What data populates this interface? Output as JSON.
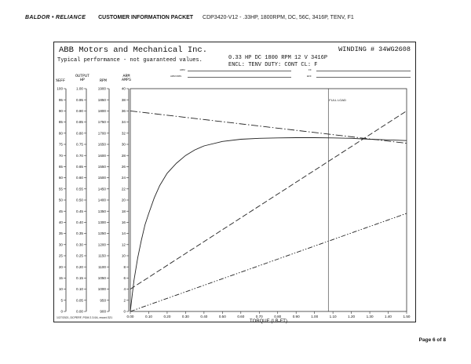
{
  "header": {
    "brand": "BALDOR • RELIANCE",
    "packet": "CUSTOMER INFORMATION PACKET",
    "description": "CDP3420-V12 - .33HP, 1800RPM, DC, 56C, 3416P, TENV, F1"
  },
  "sheet": {
    "company": "ABB Motors and Mechanical Inc.",
    "typical": "Typical performance - not guaranteed values.",
    "winding": "WINDING # 34WG2608",
    "specs_line1": "0.33 HP  DC  1800 RPM  12 V  3416P",
    "specs_line2": "ENCL: TENV  DUTY: CONT  CL: F",
    "field_labels": [
      "ARM",
      "ARM RMS",
      "FF",
      "EFF"
    ],
    "footer_note": "1/27/2021, DCPERF, PGM 2.3.0A, record 321"
  },
  "page_number": "Page 6 of 8",
  "chart_data": {
    "type": "line",
    "xlabel": "TORQUE (LB-FT)",
    "x_ticks": [
      "0.00",
      "0.10",
      "0.20",
      "0.30",
      "0.40",
      "0.50",
      "0.60",
      "0.70",
      "0.80",
      "0.90",
      "1.00",
      "1.10",
      "1.20",
      "1.30",
      "1.40",
      "1.50"
    ],
    "xlim": [
      0,
      1.5
    ],
    "axes": [
      {
        "header": "%EFF",
        "ticks": [
          "100",
          "95",
          "90",
          "85",
          "80",
          "75",
          "70",
          "65",
          "60",
          "55",
          "50",
          "45",
          "40",
          "35",
          "30",
          "25",
          "20",
          "15",
          "10",
          "5",
          "0"
        ],
        "range": [
          0,
          100
        ]
      },
      {
        "header": "OUTPUT HP",
        "ticks": [
          "1.00",
          "0.95",
          "0.90",
          "0.85",
          "0.80",
          "0.75",
          "0.70",
          "0.65",
          "0.60",
          "0.55",
          "0.50",
          "0.45",
          "0.40",
          "0.35",
          "0.30",
          "0.25",
          "0.20",
          "0.15",
          "0.10",
          "0.05",
          "0.00"
        ],
        "range": [
          0,
          1
        ]
      },
      {
        "header": "RPM",
        "ticks": [
          "1900",
          "1850",
          "1800",
          "1750",
          "1700",
          "1650",
          "1600",
          "1550",
          "1500",
          "1450",
          "1400",
          "1350",
          "1300",
          "1250",
          "1200",
          "1150",
          "1100",
          "1050",
          "1000",
          "950",
          "900"
        ],
        "range": [
          900,
          1900
        ]
      },
      {
        "header": "ARM AMPS",
        "ticks": [
          "40",
          "38",
          "36",
          "34",
          "32",
          "30",
          "28",
          "26",
          "24",
          "22",
          "20",
          "18",
          "16",
          "14",
          "12",
          "10",
          "8",
          "6",
          "4",
          "2",
          "0"
        ],
        "range": [
          0,
          40
        ]
      }
    ],
    "annotation": {
      "text": "FULL LOAD",
      "x": 1.075
    },
    "series": [
      {
        "axis": "%EFF",
        "points": [
          [
            0,
            0
          ],
          [
            0.01,
            7
          ],
          [
            0.02,
            14
          ],
          [
            0.04,
            24
          ],
          [
            0.06,
            32
          ],
          [
            0.08,
            39
          ],
          [
            0.1,
            44
          ],
          [
            0.13,
            51
          ],
          [
            0.16,
            56.5
          ],
          [
            0.2,
            62
          ],
          [
            0.25,
            66.5
          ],
          [
            0.3,
            70
          ],
          [
            0.35,
            72.5
          ],
          [
            0.4,
            74.3
          ],
          [
            0.5,
            76.3
          ],
          [
            0.6,
            77.3
          ],
          [
            0.7,
            77.7
          ],
          [
            0.8,
            77.9
          ],
          [
            0.9,
            78
          ],
          [
            1.0,
            78
          ],
          [
            1.1,
            77.9
          ],
          [
            1.2,
            77.7
          ],
          [
            1.3,
            77.3
          ],
          [
            1.4,
            77
          ],
          [
            1.5,
            76.7
          ]
        ]
      },
      {
        "axis": "RPM",
        "points": [
          [
            0,
            1800
          ],
          [
            1.5,
            1655
          ]
        ]
      },
      {
        "axis": "ARM AMPS",
        "points": [
          [
            0,
            4
          ],
          [
            1.5,
            36
          ]
        ]
      },
      {
        "axis": "OUTPUT HP",
        "points": [
          [
            0,
            0
          ],
          [
            1.5,
            0.44
          ]
        ]
      }
    ]
  }
}
